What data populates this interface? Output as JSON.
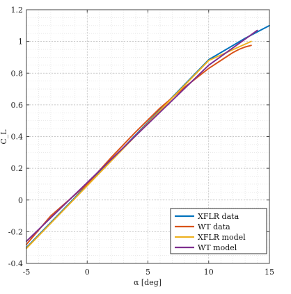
{
  "chart_data": {
    "type": "line",
    "title": "",
    "xlabel": "α [deg]",
    "ylabel": "C_L",
    "xlim": [
      -5,
      15
    ],
    "ylim": [
      -0.4,
      1.2
    ],
    "xticks": [
      -5,
      0,
      5,
      10,
      15
    ],
    "xtick_labels": [
      "-5",
      "0",
      "5",
      "10",
      "15"
    ],
    "yticks": [
      -0.4,
      -0.2,
      0,
      0.2,
      0.4,
      0.6,
      0.8,
      1,
      1.2
    ],
    "ytick_labels": [
      "-0.4",
      "-0.2",
      "0",
      "0.2",
      "0.4",
      "0.6",
      "0.8",
      "1",
      "1.2"
    ],
    "grid": "major and minor, dotted",
    "legend_position": "bottom-right",
    "series": [
      {
        "name": "XFLR data",
        "color": "#0072BD",
        "x": [
          -5,
          0,
          5,
          10,
          13,
          15
        ],
        "y": [
          -0.3,
          0.095,
          0.49,
          0.885,
          1.02,
          1.1
        ]
      },
      {
        "name": "WT data",
        "color": "#D95319",
        "x": [
          -5,
          -3,
          0,
          2,
          4,
          6,
          8,
          10,
          11,
          12,
          12.5,
          13,
          13.5
        ],
        "y": [
          -0.28,
          -0.1,
          0.1,
          0.27,
          0.43,
          0.58,
          0.71,
          0.83,
          0.88,
          0.93,
          0.95,
          0.965,
          0.975
        ]
      },
      {
        "name": "XFLR model",
        "color": "#EDB120",
        "x": [
          -5,
          0,
          5,
          10,
          13.5
        ],
        "y": [
          -0.305,
          0.09,
          0.485,
          0.88,
          1.0
        ]
      },
      {
        "name": "WT model",
        "color": "#7E2F8E",
        "x": [
          -5,
          0,
          5,
          10,
          14
        ],
        "y": [
          -0.26,
          0.11,
          0.48,
          0.85,
          1.07
        ]
      }
    ]
  }
}
